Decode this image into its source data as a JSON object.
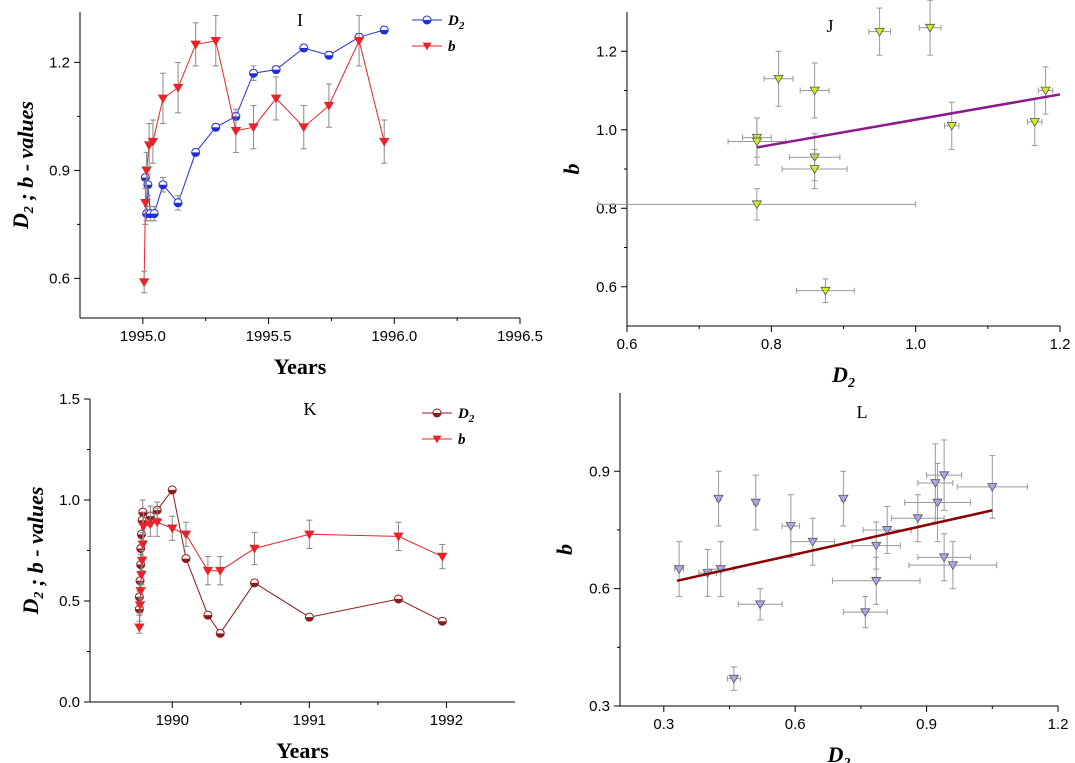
{
  "chart_data": [
    {
      "panel": "I",
      "type": "line",
      "xlabel": "Years",
      "ylabel": "D_2 ; b - values",
      "xlim": [
        1994.75,
        1996.5
      ],
      "ylim": [
        0.49,
        1.34
      ],
      "x_ticks": [
        "1995.0",
        "1995.5",
        "1996.0",
        "1996.5"
      ],
      "y_ticks": [
        "0.6",
        "0.9",
        "1.2"
      ],
      "legend": "top-right",
      "series": [
        {
          "name": "D_2",
          "color": "#1f2fd6",
          "marker": "half-circle",
          "points": [
            {
              "x": 1995.01,
              "y": 0.88,
              "err": 0.03
            },
            {
              "x": 1995.015,
              "y": 0.78,
              "err": 0.02
            },
            {
              "x": 1995.02,
              "y": 0.86,
              "err": 0.03
            },
            {
              "x": 1995.03,
              "y": 0.78,
              "err": 0.02
            },
            {
              "x": 1995.045,
              "y": 0.78,
              "err": 0.02
            },
            {
              "x": 1995.08,
              "y": 0.86,
              "err": 0.02
            },
            {
              "x": 1995.14,
              "y": 0.81,
              "err": 0.02
            },
            {
              "x": 1995.21,
              "y": 0.95,
              "err": 0.01
            },
            {
              "x": 1995.29,
              "y": 1.02,
              "err": 0.01
            },
            {
              "x": 1995.37,
              "y": 1.05,
              "err": 0.01
            },
            {
              "x": 1995.44,
              "y": 1.17,
              "err": 0.02
            },
            {
              "x": 1995.53,
              "y": 1.18,
              "err": 0.01
            },
            {
              "x": 1995.64,
              "y": 1.24,
              "err": 0.01
            },
            {
              "x": 1995.74,
              "y": 1.22,
              "err": 0.01
            },
            {
              "x": 1995.86,
              "y": 1.27,
              "err": 0.01
            },
            {
              "x": 1995.96,
              "y": 1.29,
              "err": 0.01
            }
          ]
        },
        {
          "name": "b",
          "color": "#e8232a",
          "marker": "triangle-down",
          "points": [
            {
              "x": 1995.005,
              "y": 0.59,
              "err": 0.03
            },
            {
              "x": 1995.01,
              "y": 0.81,
              "err": 0.06
            },
            {
              "x": 1995.015,
              "y": 0.9,
              "err": 0.05
            },
            {
              "x": 1995.025,
              "y": 0.97,
              "err": 0.06
            },
            {
              "x": 1995.04,
              "y": 0.98,
              "err": 0.06
            },
            {
              "x": 1995.08,
              "y": 1.1,
              "err": 0.07
            },
            {
              "x": 1995.14,
              "y": 1.13,
              "err": 0.07
            },
            {
              "x": 1995.21,
              "y": 1.25,
              "err": 0.06
            },
            {
              "x": 1995.29,
              "y": 1.26,
              "err": 0.07
            },
            {
              "x": 1995.37,
              "y": 1.01,
              "err": 0.06
            },
            {
              "x": 1995.44,
              "y": 1.02,
              "err": 0.06
            },
            {
              "x": 1995.53,
              "y": 1.1,
              "err": 0.06
            },
            {
              "x": 1995.64,
              "y": 1.02,
              "err": 0.06
            },
            {
              "x": 1995.74,
              "y": 1.08,
              "err": 0.06
            },
            {
              "x": 1995.86,
              "y": 1.26,
              "err": 0.07
            },
            {
              "x": 1995.96,
              "y": 0.98,
              "err": 0.06
            }
          ]
        }
      ]
    },
    {
      "panel": "J",
      "type": "scatter",
      "xlabel": "D_2",
      "ylabel": "b",
      "xlim": [
        0.6,
        1.2
      ],
      "ylim": [
        0.5,
        1.3
      ],
      "x_ticks": [
        "0.6",
        "0.8",
        "1.0",
        "1.2"
      ],
      "y_ticks": [
        "0.6",
        "0.8",
        "1.0",
        "1.2"
      ],
      "marker_color": "#ccee22",
      "points": [
        {
          "x": 0.78,
          "y": 0.98,
          "xerr": 0.02,
          "yerr": 0.05
        },
        {
          "x": 0.78,
          "y": 0.97,
          "xerr": 0.04,
          "yerr": 0.06
        },
        {
          "x": 0.78,
          "y": 0.81,
          "xerr": 0.22,
          "yerr": 0.04
        },
        {
          "x": 0.81,
          "y": 1.13,
          "xerr": 0.02,
          "yerr": 0.07
        },
        {
          "x": 0.86,
          "y": 1.1,
          "xerr": 0.02,
          "yerr": 0.07
        },
        {
          "x": 0.86,
          "y": 0.93,
          "xerr": 0.035,
          "yerr": 0.06
        },
        {
          "x": 0.86,
          "y": 0.9,
          "xerr": 0.045,
          "yerr": 0.05
        },
        {
          "x": 0.875,
          "y": 0.59,
          "xerr": 0.04,
          "yerr": 0.03
        },
        {
          "x": 0.95,
          "y": 1.25,
          "xerr": 0.015,
          "yerr": 0.06
        },
        {
          "x": 1.02,
          "y": 1.26,
          "xerr": 0.015,
          "yerr": 0.07
        },
        {
          "x": 1.05,
          "y": 1.01,
          "xerr": 0.01,
          "yerr": 0.06
        },
        {
          "x": 1.165,
          "y": 1.02,
          "xerr": 0.01,
          "yerr": 0.06
        },
        {
          "x": 1.18,
          "y": 1.1,
          "xerr": 0.01,
          "yerr": 0.06
        }
      ],
      "fit_line": {
        "x": [
          0.78,
          1.2
        ],
        "y": [
          0.955,
          1.09
        ],
        "color": "#8b1a8b"
      }
    },
    {
      "panel": "K",
      "type": "line",
      "xlabel": "Years",
      "ylabel": "D_2 ; b - values",
      "xlim": [
        1989.4,
        1992.5
      ],
      "ylim": [
        0.0,
        1.5
      ],
      "x_ticks": [
        "1990",
        "1991",
        "1992"
      ],
      "y_ticks": [
        "0.0",
        "0.5",
        "1.0",
        "1.5"
      ],
      "legend": "top-right",
      "series": [
        {
          "name": "D_2",
          "color": "#8b1a1a",
          "marker": "half-circle",
          "points": [
            {
              "x": 1989.76,
              "y": 0.46,
              "err": 0.03
            },
            {
              "x": 1989.76,
              "y": 0.52,
              "err": 0.03
            },
            {
              "x": 1989.765,
              "y": 0.6,
              "err": 0.04
            },
            {
              "x": 1989.77,
              "y": 0.68,
              "err": 0.05
            },
            {
              "x": 1989.77,
              "y": 0.76,
              "err": 0.05
            },
            {
              "x": 1989.775,
              "y": 0.83,
              "err": 0.05
            },
            {
              "x": 1989.78,
              "y": 0.9,
              "err": 0.05
            },
            {
              "x": 1989.785,
              "y": 0.94,
              "err": 0.06
            },
            {
              "x": 1989.84,
              "y": 0.92,
              "err": 0.05
            },
            {
              "x": 1989.89,
              "y": 0.95,
              "err": 0.04
            },
            {
              "x": 1990.0,
              "y": 1.05,
              "err": 0.01
            },
            {
              "x": 1990.1,
              "y": 0.71,
              "err": 0.01
            },
            {
              "x": 1990.26,
              "y": 0.43,
              "err": 0.01
            },
            {
              "x": 1990.35,
              "y": 0.34,
              "err": 0.01
            },
            {
              "x": 1990.6,
              "y": 0.59,
              "err": 0.01
            },
            {
              "x": 1991.0,
              "y": 0.42,
              "err": 0.01
            },
            {
              "x": 1991.65,
              "y": 0.51,
              "err": 0.01
            },
            {
              "x": 1991.97,
              "y": 0.4,
              "err": 0.01
            }
          ]
        },
        {
          "name": "b",
          "color": "#e8232a",
          "marker": "triangle-down",
          "points": [
            {
              "x": 1989.76,
              "y": 0.37,
              "err": 0.03
            },
            {
              "x": 1989.765,
              "y": 0.48,
              "err": 0.04
            },
            {
              "x": 1989.77,
              "y": 0.55,
              "err": 0.04
            },
            {
              "x": 1989.775,
              "y": 0.63,
              "err": 0.05
            },
            {
              "x": 1989.78,
              "y": 0.7,
              "err": 0.05
            },
            {
              "x": 1989.785,
              "y": 0.78,
              "err": 0.06
            },
            {
              "x": 1989.79,
              "y": 0.87,
              "err": 0.07
            },
            {
              "x": 1989.84,
              "y": 0.88,
              "err": 0.06
            },
            {
              "x": 1989.89,
              "y": 0.89,
              "err": 0.07
            },
            {
              "x": 1990.0,
              "y": 0.86,
              "err": 0.06
            },
            {
              "x": 1990.1,
              "y": 0.83,
              "err": 0.06
            },
            {
              "x": 1990.26,
              "y": 0.65,
              "err": 0.07
            },
            {
              "x": 1990.35,
              "y": 0.65,
              "err": 0.07
            },
            {
              "x": 1990.6,
              "y": 0.76,
              "err": 0.08
            },
            {
              "x": 1991.0,
              "y": 0.83,
              "err": 0.07
            },
            {
              "x": 1991.65,
              "y": 0.82,
              "err": 0.07
            },
            {
              "x": 1991.97,
              "y": 0.72,
              "err": 0.06
            }
          ]
        }
      ]
    },
    {
      "panel": "L",
      "type": "scatter",
      "xlabel": "D_2",
      "ylabel": "b",
      "xlim": [
        0.2,
        1.2
      ],
      "ylim": [
        0.3,
        1.1
      ],
      "x_ticks": [
        "0.3",
        "0.6",
        "0.9",
        "1.2"
      ],
      "y_ticks": [
        "0.3",
        "0.6",
        "0.9"
      ],
      "marker_color": "#a8a8ee",
      "points": [
        {
          "x": 0.335,
          "y": 0.65,
          "xerr": 0.01,
          "yerr": 0.07
        },
        {
          "x": 0.4,
          "y": 0.64,
          "xerr": 0.02,
          "yerr": 0.06
        },
        {
          "x": 0.43,
          "y": 0.65,
          "xerr": 0.03,
          "yerr": 0.07
        },
        {
          "x": 0.425,
          "y": 0.83,
          "xerr": 0.005,
          "yerr": 0.07
        },
        {
          "x": 0.46,
          "y": 0.37,
          "xerr": 0.015,
          "yerr": 0.03
        },
        {
          "x": 0.51,
          "y": 0.82,
          "xerr": 0.005,
          "yerr": 0.07
        },
        {
          "x": 0.52,
          "y": 0.56,
          "xerr": 0.05,
          "yerr": 0.04
        },
        {
          "x": 0.59,
          "y": 0.76,
          "xerr": 0.02,
          "yerr": 0.08
        },
        {
          "x": 0.64,
          "y": 0.72,
          "xerr": 0.05,
          "yerr": 0.06
        },
        {
          "x": 0.71,
          "y": 0.83,
          "xerr": 0.005,
          "yerr": 0.07
        },
        {
          "x": 0.76,
          "y": 0.54,
          "xerr": 0.05,
          "yerr": 0.04
        },
        {
          "x": 0.785,
          "y": 0.71,
          "xerr": 0.055,
          "yerr": 0.06
        },
        {
          "x": 0.785,
          "y": 0.62,
          "xerr": 0.1,
          "yerr": 0.06
        },
        {
          "x": 0.81,
          "y": 0.75,
          "xerr": 0.055,
          "yerr": 0.06
        },
        {
          "x": 0.88,
          "y": 0.78,
          "xerr": 0.06,
          "yerr": 0.06
        },
        {
          "x": 0.92,
          "y": 0.87,
          "xerr": 0.04,
          "yerr": 0.1
        },
        {
          "x": 0.925,
          "y": 0.82,
          "xerr": 0.075,
          "yerr": 0.1
        },
        {
          "x": 0.94,
          "y": 0.89,
          "xerr": 0.04,
          "yerr": 0.09
        },
        {
          "x": 0.94,
          "y": 0.68,
          "xerr": 0.06,
          "yerr": 0.06
        },
        {
          "x": 0.96,
          "y": 0.66,
          "xerr": 0.1,
          "yerr": 0.06
        },
        {
          "x": 1.05,
          "y": 0.86,
          "xerr": 0.08,
          "yerr": 0.08
        }
      ],
      "fit_line": {
        "x": [
          0.33,
          1.05
        ],
        "y": [
          0.62,
          0.8
        ],
        "color": "#8b0000"
      }
    }
  ]
}
